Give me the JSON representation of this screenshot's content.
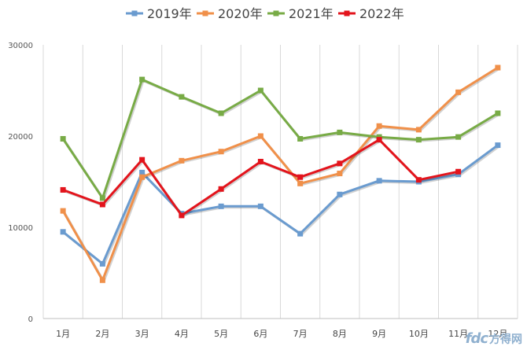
{
  "chart_data": {
    "type": "line",
    "title": "",
    "xlabel": "",
    "ylabel": "",
    "categories": [
      "1月",
      "2月",
      "3月",
      "4月",
      "5月",
      "6月",
      "7月",
      "8月",
      "9月",
      "10月",
      "11月",
      "12月"
    ],
    "ylim": [
      0,
      30000
    ],
    "yticks": [
      0,
      10000,
      20000,
      30000
    ],
    "grid": "vertical",
    "legend": "top",
    "series": [
      {
        "name": "2019年",
        "color": "#6a9bcf",
        "values": [
          9500,
          6000,
          16000,
          11500,
          12300,
          12300,
          9300,
          13600,
          15100,
          15000,
          15800,
          19000
        ]
      },
      {
        "name": "2020年",
        "color": "#f0904a",
        "values": [
          11800,
          4200,
          15500,
          17300,
          18300,
          20000,
          14800,
          15900,
          21100,
          20700,
          24800,
          27500
        ]
      },
      {
        "name": "2021年",
        "color": "#78ab46",
        "values": [
          19700,
          13200,
          26200,
          24300,
          22500,
          25000,
          19700,
          20400,
          19900,
          19600,
          19900,
          22500
        ]
      },
      {
        "name": "2022年",
        "color": "#e3141c",
        "values": [
          14100,
          12500,
          17400,
          11300,
          14200,
          17200,
          15500,
          17000,
          19600,
          15200,
          16100,
          null
        ]
      }
    ]
  },
  "watermark": {
    "logo": "fdc",
    "text": "方得网"
  }
}
